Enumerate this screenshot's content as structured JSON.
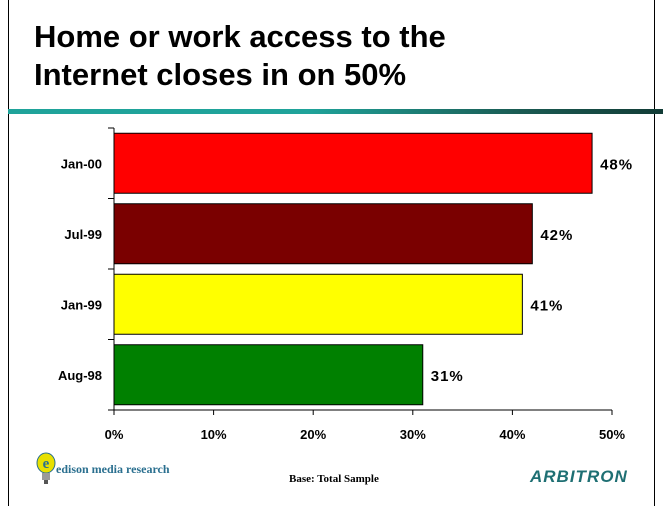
{
  "title_line1": "Home or work access to the",
  "title_line2": "Internet closes in on 50%",
  "colors": {
    "accent_rule": "#1fa39a",
    "accent_rule_dark": "#123c36",
    "arbitron": "#1e6f73"
  },
  "chart_data": {
    "type": "bar",
    "orientation": "horizontal",
    "categories": [
      "Jan-00",
      "Jul-99",
      "Jan-99",
      "Aug-98"
    ],
    "values": [
      48,
      42,
      41,
      31
    ],
    "value_labels": [
      "48%",
      "42%",
      "41%",
      "31%"
    ],
    "bar_colors": [
      "#ff0000",
      "#7a0000",
      "#ffff00",
      "#008000"
    ],
    "xlim": [
      0,
      50
    ],
    "x_ticks": [
      "0%",
      "10%",
      "20%",
      "30%",
      "40%",
      "50%"
    ],
    "grid": false
  },
  "footer": {
    "logo_text": "edison media research",
    "base_note": "Base: Total Sample",
    "brand": "ARBITRON"
  }
}
